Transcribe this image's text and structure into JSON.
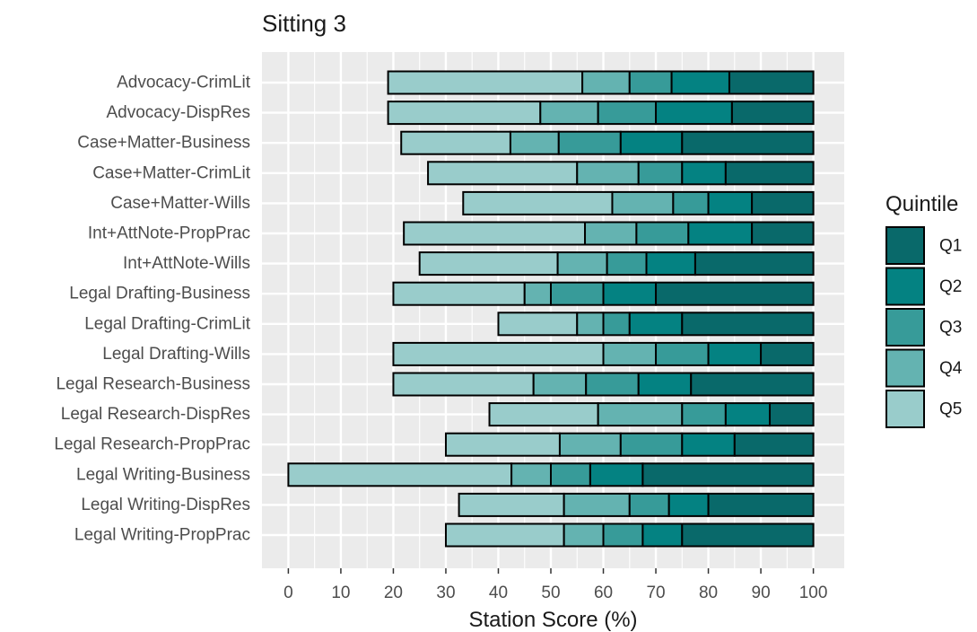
{
  "chart_data": {
    "type": "bar",
    "orientation": "horizontal",
    "stacked": true,
    "title": "Sitting 3",
    "xlabel": "Station Score (%)",
    "ylabel": "",
    "xlim": [
      0,
      100
    ],
    "x_ticks": [
      "0",
      "10",
      "20",
      "30",
      "40",
      "50",
      "60",
      "70",
      "80",
      "90",
      "100"
    ],
    "grid": true,
    "legend": {
      "title": "Quintile",
      "position": "right",
      "entries": [
        "Q1",
        "Q2",
        "Q3",
        "Q4",
        "Q5"
      ]
    },
    "colors": {
      "Q1": "#09696a",
      "Q2": "#048282",
      "Q3": "#379b99",
      "Q4": "#64b3b1",
      "Q5": "#99cccb",
      "panel": "#ebebeb",
      "grid": "#ffffff"
    },
    "categories": [
      "Advocacy-CrimLit",
      "Advocacy-DispRes",
      "Case+Matter-Business",
      "Case+Matter-CrimLit",
      "Case+Matter-Wills",
      "Int+AttNote-PropPrac",
      "Int+AttNote-Wills",
      "Legal Drafting-Business",
      "Legal Drafting-CrimLit",
      "Legal Drafting-Wills",
      "Legal Research-Business",
      "Legal Research-DispRes",
      "Legal Research-PropPrac",
      "Legal Writing-Business",
      "Legal Writing-DispRes",
      "Legal Writing-PropPrac"
    ],
    "boundaries": [
      [
        19,
        56,
        65,
        73,
        84,
        100
      ],
      [
        19,
        48,
        59,
        70,
        84.5,
        100
      ],
      [
        21.5,
        42.3,
        51.5,
        63.3,
        75,
        100
      ],
      [
        26.6,
        55,
        66.7,
        75,
        83.3,
        100
      ],
      [
        33.3,
        61.7,
        73.3,
        80,
        88.3,
        100
      ],
      [
        22,
        56.5,
        66.3,
        76.2,
        88.3,
        100
      ],
      [
        25,
        51.3,
        60.7,
        68.2,
        77.5,
        100
      ],
      [
        20,
        45,
        50,
        60,
        70,
        100
      ],
      [
        40,
        55,
        60,
        65,
        75,
        100
      ],
      [
        20,
        60,
        70,
        80,
        90,
        100
      ],
      [
        20,
        46.7,
        56.7,
        66.7,
        76.7,
        100
      ],
      [
        38.3,
        59,
        75,
        83.3,
        91.7,
        100
      ],
      [
        30,
        51.7,
        63.3,
        75,
        85,
        100
      ],
      [
        0,
        42.5,
        50,
        57.5,
        67.5,
        100
      ],
      [
        32.5,
        52.5,
        65,
        72.5,
        80,
        100
      ],
      [
        30,
        52.5,
        60,
        67.5,
        75,
        100
      ]
    ]
  }
}
